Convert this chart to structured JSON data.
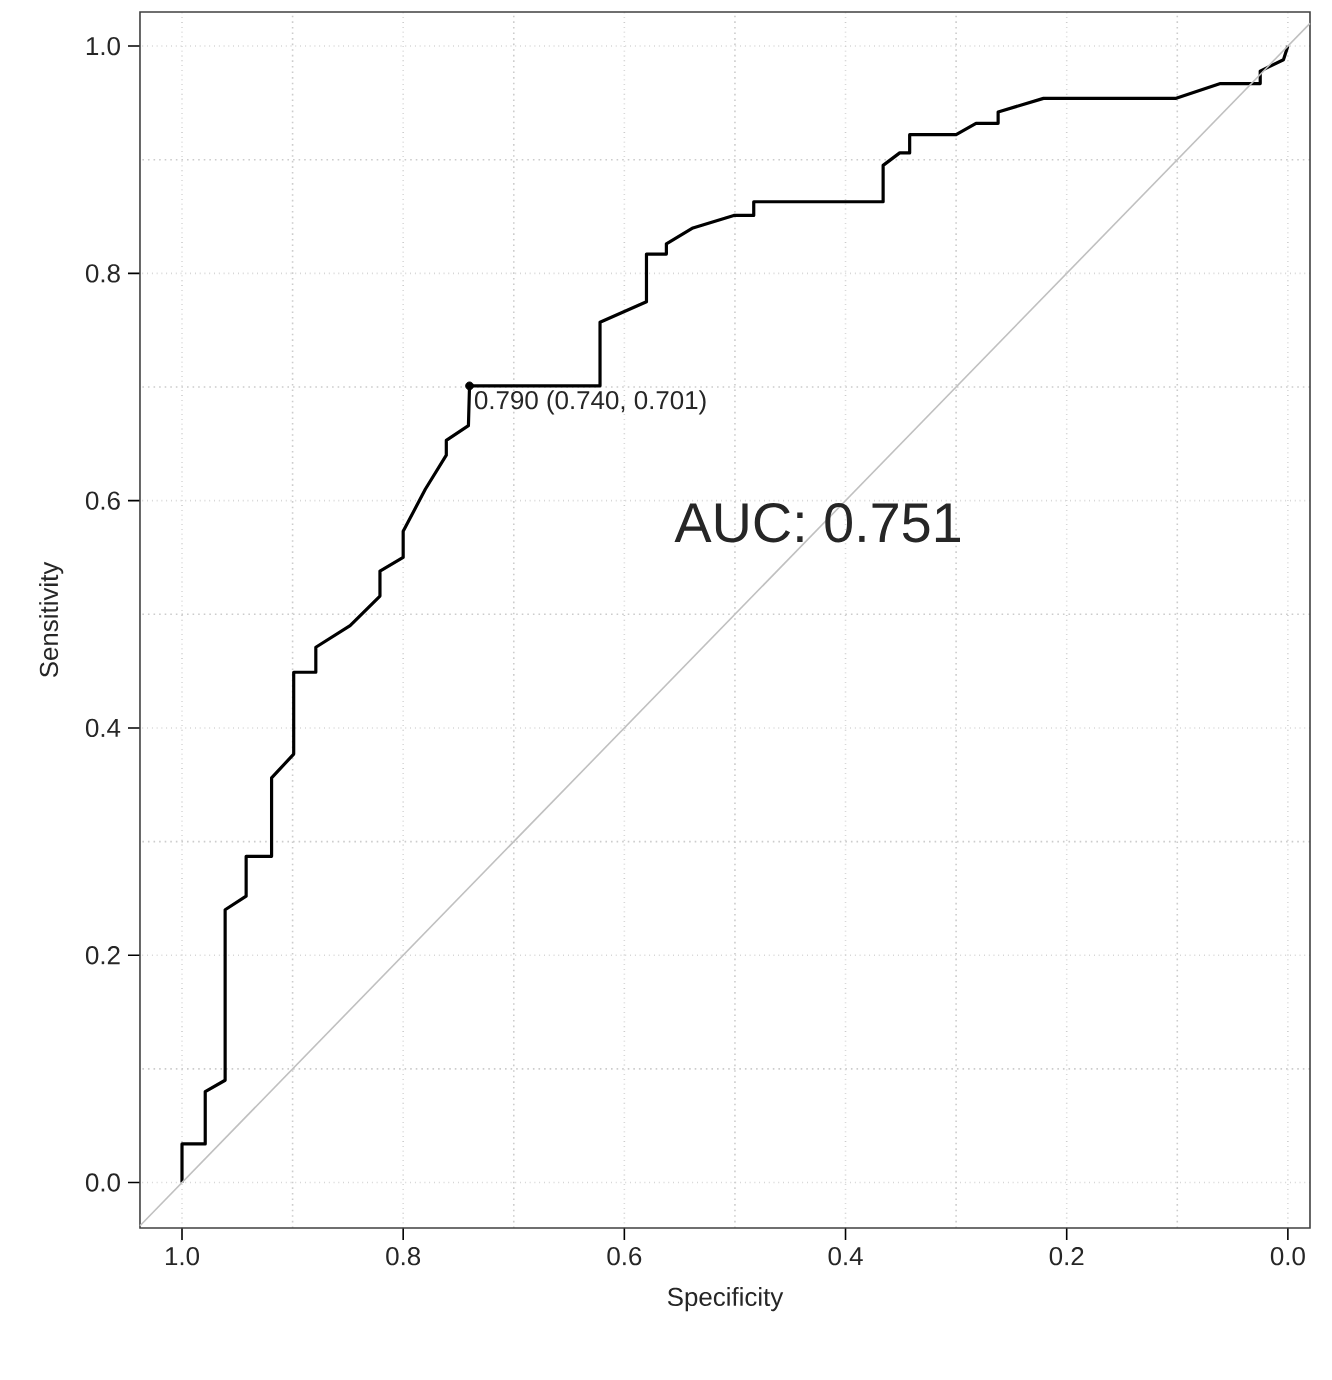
{
  "chart_data": {
    "type": "line",
    "xlabel": "Specificity",
    "ylabel": "Sensitivity",
    "xlim": [
      1.038,
      -0.02
    ],
    "ylim": [
      -0.04,
      1.03
    ],
    "xticks": [
      {
        "value": 1,
        "label": "1.0"
      },
      {
        "value": 0.8,
        "label": "0.8"
      },
      {
        "value": 0.6,
        "label": "0.6"
      },
      {
        "value": 0.4,
        "label": "0.4"
      },
      {
        "value": 0.2,
        "label": "0.2"
      },
      {
        "value": 0,
        "label": "0.0"
      }
    ],
    "yticks": [
      {
        "value": 0,
        "label": "0.0"
      },
      {
        "value": 0.2,
        "label": "0.2"
      },
      {
        "value": 0.4,
        "label": "0.4"
      },
      {
        "value": 0.6,
        "label": "0.6"
      },
      {
        "value": 0.8,
        "label": "0.8"
      },
      {
        "value": 1,
        "label": "1.0"
      }
    ],
    "grid": true,
    "marker": "none",
    "line_style": "solid",
    "series": [
      {
        "color": "#000000",
        "x": [
          1.0,
          1.0,
          0.979,
          0.979,
          0.961,
          0.961,
          0.942,
          0.942,
          0.919,
          0.919,
          0.899,
          0.899,
          0.879,
          0.879,
          0.848,
          0.821,
          0.821,
          0.8,
          0.8,
          0.78,
          0.761,
          0.761,
          0.741,
          0.74,
          0.622,
          0.622,
          0.58,
          0.58,
          0.562,
          0.562,
          0.538,
          0.501,
          0.483,
          0.483,
          0.366,
          0.366,
          0.351,
          0.342,
          0.342,
          0.3,
          0.282,
          0.262,
          0.262,
          0.221,
          0.101,
          0.061,
          0.025,
          0.025,
          0.004,
          0.0
        ],
        "values": [
          0.0,
          0.034,
          0.034,
          0.08,
          0.09,
          0.24,
          0.252,
          0.287,
          0.287,
          0.356,
          0.377,
          0.449,
          0.449,
          0.471,
          0.49,
          0.516,
          0.538,
          0.55,
          0.573,
          0.61,
          0.64,
          0.653,
          0.666,
          0.701,
          0.701,
          0.757,
          0.775,
          0.817,
          0.817,
          0.826,
          0.84,
          0.851,
          0.851,
          0.863,
          0.863,
          0.895,
          0.906,
          0.906,
          0.922,
          0.922,
          0.932,
          0.932,
          0.942,
          0.954,
          0.954,
          0.967,
          0.967,
          0.978,
          0.988,
          1.0
        ]
      },
      {
        "color": "#c0c0c0",
        "x": [
          1.038,
          -0.02
        ],
        "values": [
          -0.038,
          1.02
        ]
      }
    ],
    "annotations": [
      {
        "text": "0.790 (0.740, 0.701)",
        "x": 0.74,
        "y": 0.701
      },
      "AUC: 0.751"
    ]
  }
}
